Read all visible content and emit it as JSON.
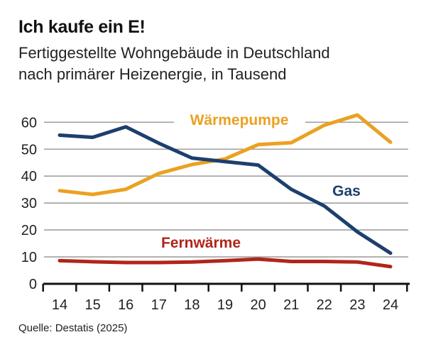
{
  "chart_data": {
    "type": "line",
    "title": "Ich kaufe ein E!",
    "subtitle": [
      "Fertiggestellte Wohngebäude in Deutschland",
      "nach primärer Heizenergie, in Tausend"
    ],
    "source": "Quelle: Destatis (2025)",
    "x": [
      "14",
      "15",
      "16",
      "17",
      "18",
      "19",
      "20",
      "21",
      "22",
      "23",
      "24"
    ],
    "ylim": [
      0,
      60
    ],
    "yticks": [
      0,
      10,
      20,
      30,
      40,
      50,
      60
    ],
    "grid": true,
    "series": [
      {
        "name": "Wärmepumpe",
        "color": "#eba121",
        "values": [
          34.6,
          33.2,
          35.1,
          41.0,
          44.3,
          46.4,
          51.7,
          52.4,
          58.9,
          62.7,
          52.6
        ]
      },
      {
        "name": "Gas",
        "color": "#1d3f6e",
        "values": [
          55.2,
          54.4,
          58.3,
          52.2,
          46.7,
          45.4,
          44.1,
          35.1,
          28.9,
          19.3,
          11.4
        ]
      },
      {
        "name": "Fernwärme",
        "color": "#b0261b",
        "values": [
          8.6,
          8.2,
          7.9,
          7.9,
          8.1,
          8.6,
          9.2,
          8.3,
          8.3,
          8.1,
          6.4
        ]
      }
    ]
  }
}
